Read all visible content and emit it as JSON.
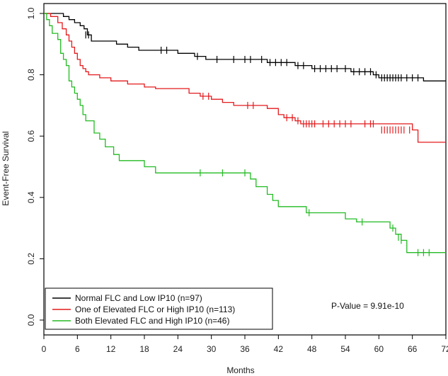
{
  "chart_data": {
    "type": "line",
    "title": "",
    "xlabel": "Months",
    "ylabel": "Event-Free Survival",
    "xlim": [
      0,
      72
    ],
    "ylim": [
      0,
      1
    ],
    "x_ticks": [
      0,
      6,
      12,
      18,
      24,
      30,
      36,
      42,
      48,
      54,
      60,
      66,
      72
    ],
    "y_ticks": [
      0.0,
      0.2,
      0.4,
      0.6,
      0.8,
      1.0
    ],
    "y_tick_labels": [
      "0.0",
      "0.2",
      "0.4",
      "0.6",
      "0.8",
      "1.0"
    ],
    "grid": false,
    "legend_position": "bottom-left",
    "annotation": "P-Value = 9.91e-10",
    "series": [
      {
        "name": "Normal FLC and Low IP10 (n=97)",
        "color": "#000000",
        "steps": [
          [
            0,
            1.0
          ],
          [
            3.5,
            0.99
          ],
          [
            4.5,
            0.98
          ],
          [
            5.5,
            0.97
          ],
          [
            6.5,
            0.96
          ],
          [
            7.2,
            0.95
          ],
          [
            7.8,
            0.93
          ],
          [
            8.5,
            0.91
          ],
          [
            13,
            0.9
          ],
          [
            15,
            0.89
          ],
          [
            17,
            0.88
          ],
          [
            24,
            0.87
          ],
          [
            27,
            0.86
          ],
          [
            29,
            0.85
          ],
          [
            40,
            0.84
          ],
          [
            45,
            0.83
          ],
          [
            48,
            0.82
          ],
          [
            55,
            0.81
          ],
          [
            59,
            0.8
          ],
          [
            60,
            0.79
          ],
          [
            68,
            0.78
          ],
          [
            72,
            0.78
          ]
        ],
        "censors": [
          [
            7.5,
            0.93
          ],
          [
            8.0,
            0.93
          ],
          [
            21,
            0.88
          ],
          [
            22,
            0.88
          ],
          [
            27.5,
            0.86
          ],
          [
            31,
            0.85
          ],
          [
            34,
            0.85
          ],
          [
            36,
            0.85
          ],
          [
            37,
            0.85
          ],
          [
            39,
            0.85
          ],
          [
            40.5,
            0.84
          ],
          [
            41.5,
            0.84
          ],
          [
            42.5,
            0.84
          ],
          [
            43.5,
            0.84
          ],
          [
            45.5,
            0.83
          ],
          [
            46.5,
            0.83
          ],
          [
            48.5,
            0.82
          ],
          [
            49.5,
            0.82
          ],
          [
            50.5,
            0.82
          ],
          [
            51.5,
            0.82
          ],
          [
            52.5,
            0.82
          ],
          [
            54,
            0.82
          ],
          [
            55.5,
            0.81
          ],
          [
            56.5,
            0.81
          ],
          [
            57.5,
            0.81
          ],
          [
            58.5,
            0.81
          ],
          [
            59.5,
            0.8
          ],
          [
            60.5,
            0.79
          ],
          [
            61,
            0.79
          ],
          [
            61.5,
            0.79
          ],
          [
            62,
            0.79
          ],
          [
            62.5,
            0.79
          ],
          [
            63,
            0.79
          ],
          [
            63.5,
            0.79
          ],
          [
            64,
            0.79
          ],
          [
            65,
            0.79
          ],
          [
            66,
            0.79
          ],
          [
            67,
            0.79
          ]
        ]
      },
      {
        "name": "One of Elevated FLC or High IP10  (n=113)",
        "color": "#e41a1c",
        "steps": [
          [
            0,
            1.0
          ],
          [
            1.2,
            0.99
          ],
          [
            2.5,
            0.97
          ],
          [
            3.3,
            0.95
          ],
          [
            4,
            0.93
          ],
          [
            4.5,
            0.91
          ],
          [
            5,
            0.89
          ],
          [
            5.5,
            0.87
          ],
          [
            6,
            0.85
          ],
          [
            6.5,
            0.83
          ],
          [
            7,
            0.82
          ],
          [
            7.5,
            0.81
          ],
          [
            8,
            0.8
          ],
          [
            10,
            0.79
          ],
          [
            12,
            0.78
          ],
          [
            15,
            0.77
          ],
          [
            18,
            0.76
          ],
          [
            20,
            0.755
          ],
          [
            26,
            0.74
          ],
          [
            28,
            0.73
          ],
          [
            30,
            0.72
          ],
          [
            32,
            0.71
          ],
          [
            34,
            0.7
          ],
          [
            40,
            0.69
          ],
          [
            42,
            0.67
          ],
          [
            43,
            0.66
          ],
          [
            45,
            0.65
          ],
          [
            46,
            0.64
          ],
          [
            66,
            0.62
          ],
          [
            67,
            0.58
          ],
          [
            72,
            0.58
          ]
        ],
        "censors": [
          [
            28.5,
            0.73
          ],
          [
            29.5,
            0.73
          ],
          [
            36.5,
            0.7
          ],
          [
            37.5,
            0.7
          ],
          [
            43.5,
            0.66
          ],
          [
            44.5,
            0.66
          ],
          [
            45.5,
            0.65
          ],
          [
            46.5,
            0.64
          ],
          [
            47,
            0.64
          ],
          [
            47.5,
            0.64
          ],
          [
            48,
            0.64
          ],
          [
            48.5,
            0.64
          ],
          [
            50,
            0.64
          ],
          [
            51,
            0.64
          ],
          [
            52,
            0.64
          ],
          [
            53,
            0.64
          ],
          [
            54,
            0.64
          ],
          [
            55,
            0.64
          ],
          [
            57.5,
            0.64
          ],
          [
            58.5,
            0.64
          ],
          [
            59,
            0.64
          ],
          [
            60.5,
            0.62
          ],
          [
            61,
            0.62
          ],
          [
            61.5,
            0.62
          ],
          [
            62,
            0.62
          ],
          [
            62.5,
            0.62
          ],
          [
            63,
            0.62
          ],
          [
            63.5,
            0.62
          ],
          [
            64,
            0.62
          ],
          [
            64.5,
            0.62
          ],
          [
            65.5,
            0.62
          ]
        ]
      },
      {
        "name": "Both Elevated FLC and High IP10 (n=46)",
        "color": "#22bb22",
        "steps": [
          [
            0,
            1.0
          ],
          [
            0.5,
            0.98
          ],
          [
            1,
            0.96
          ],
          [
            1.5,
            0.935
          ],
          [
            2.5,
            0.915
          ],
          [
            3,
            0.87
          ],
          [
            3.5,
            0.85
          ],
          [
            4,
            0.83
          ],
          [
            4.5,
            0.78
          ],
          [
            5,
            0.76
          ],
          [
            5.5,
            0.74
          ],
          [
            6,
            0.72
          ],
          [
            6.5,
            0.7
          ],
          [
            7,
            0.67
          ],
          [
            7.5,
            0.65
          ],
          [
            9,
            0.61
          ],
          [
            10,
            0.59
          ],
          [
            11,
            0.565
          ],
          [
            12.5,
            0.54
          ],
          [
            13.5,
            0.52
          ],
          [
            18,
            0.5
          ],
          [
            20,
            0.48
          ],
          [
            37,
            0.46
          ],
          [
            38,
            0.435
          ],
          [
            40,
            0.41
          ],
          [
            41,
            0.39
          ],
          [
            42,
            0.37
          ],
          [
            47,
            0.35
          ],
          [
            54,
            0.33
          ],
          [
            56,
            0.32
          ],
          [
            62,
            0.3
          ],
          [
            63,
            0.28
          ],
          [
            64,
            0.26
          ],
          [
            65,
            0.22
          ],
          [
            72,
            0.22
          ]
        ],
        "censors": [
          [
            28,
            0.48
          ],
          [
            32,
            0.48
          ],
          [
            36,
            0.48
          ],
          [
            47.5,
            0.35
          ],
          [
            57,
            0.32
          ],
          [
            62.5,
            0.3
          ],
          [
            63.5,
            0.27
          ],
          [
            64,
            0.26
          ],
          [
            67,
            0.22
          ],
          [
            68,
            0.22
          ],
          [
            69,
            0.22
          ]
        ]
      }
    ]
  }
}
